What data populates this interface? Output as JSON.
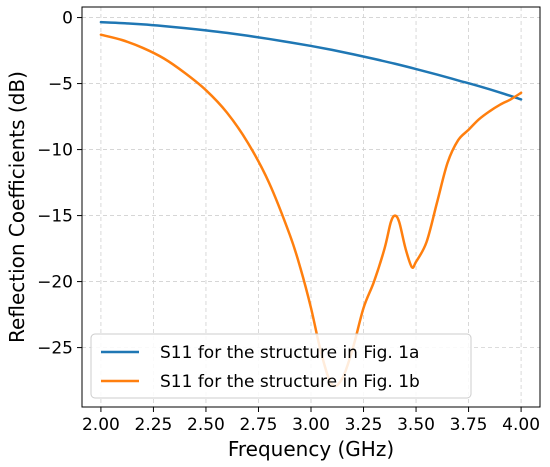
{
  "chart_data": {
    "type": "line",
    "xlabel": "Frequency (GHz)",
    "ylabel": "Reflection Coefficients (dB)",
    "xlim": [
      1.91,
      4.09
    ],
    "ylim": [
      -29.5,
      0.8
    ],
    "xticks": [
      2.0,
      2.25,
      2.5,
      2.75,
      3.0,
      3.25,
      3.5,
      3.75,
      4.0
    ],
    "xtick_labels": [
      "2.00",
      "2.25",
      "2.50",
      "2.75",
      "3.00",
      "3.25",
      "3.50",
      "3.75",
      "4.00"
    ],
    "yticks": [
      0,
      -5,
      -10,
      -15,
      -20,
      -25
    ],
    "ytick_labels": [
      "0",
      "−5",
      "−10",
      "−15",
      "−20",
      "−25"
    ],
    "grid": true,
    "legend_position": "lower-left",
    "series": [
      {
        "name": "S11 for the structure in Fig. 1a",
        "color": "#1f77b4",
        "x": [
          2.0,
          2.1,
          2.2,
          2.3,
          2.4,
          2.5,
          2.6,
          2.7,
          2.8,
          2.9,
          3.0,
          3.1,
          3.2,
          3.3,
          3.4,
          3.5,
          3.6,
          3.7,
          3.8,
          3.9,
          4.0
        ],
        "y": [
          -0.35,
          -0.42,
          -0.52,
          -0.65,
          -0.8,
          -0.97,
          -1.16,
          -1.38,
          -1.62,
          -1.88,
          -2.15,
          -2.45,
          -2.78,
          -3.13,
          -3.5,
          -3.9,
          -4.32,
          -4.76,
          -5.2,
          -5.68,
          -6.2
        ]
      },
      {
        "name": "S11 for the structure in Fig. 1b",
        "color": "#ff7f0e",
        "x": [
          2.0,
          2.1,
          2.2,
          2.3,
          2.4,
          2.5,
          2.6,
          2.7,
          2.8,
          2.9,
          2.95,
          3.0,
          3.05,
          3.1,
          3.15,
          3.2,
          3.25,
          3.3,
          3.35,
          3.38,
          3.4,
          3.42,
          3.45,
          3.48,
          3.5,
          3.55,
          3.6,
          3.65,
          3.7,
          3.75,
          3.8,
          3.85,
          3.9,
          3.95,
          4.0
        ],
        "y": [
          -1.3,
          -1.7,
          -2.3,
          -3.1,
          -4.2,
          -5.5,
          -7.2,
          -9.5,
          -12.5,
          -16.5,
          -19.0,
          -22.0,
          -25.5,
          -27.8,
          -27.3,
          -25.0,
          -22.0,
          -20.0,
          -17.5,
          -15.5,
          -15.0,
          -15.5,
          -17.5,
          -18.9,
          -18.5,
          -17.0,
          -14.0,
          -11.0,
          -9.3,
          -8.5,
          -7.7,
          -7.1,
          -6.6,
          -6.2,
          -5.7
        ]
      }
    ]
  }
}
